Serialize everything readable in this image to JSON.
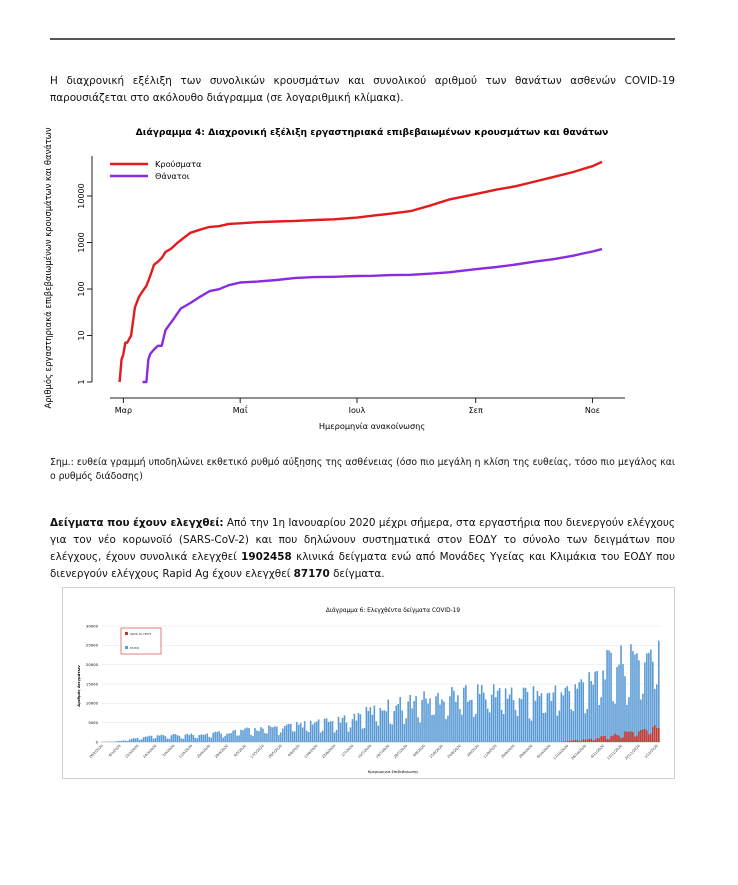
{
  "page": {
    "intro_text": "Η διαχρονική εξέλιξη των συνολικών κρουσμάτων και συνολικού αριθμού των θανάτων ασθενών COVID-19 παρουσιάζεται στο ακόλουθο διάγραμμα (σε λογαριθμική κλίμακα).",
    "note_text": "Σημ.: ευθεία γραμμή υποδηλώνει εκθετικό ρυθμό αύξησης της ασθένειας (όσο πιο μεγάλη η κλίση της ευθείας, τόσο πιο μεγάλος και ο ρυθμός διάδοσης)",
    "samples_heading": "Δείγματα που έχουν ελεγχθεί:",
    "samples_text_1": " Από την 1η Ιανουαρίου 2020 μέχρι σήμερα, στα εργαστήρια που διενεργούν ελέγχους για τον νέο κορωνοϊό (SARS-CoV-2) και που δηλώνουν συστηματικά στον ΕΟΔΥ το σύνολο των δειγμάτων που ελέγχους, έχουν συνολικά ελεγχθεί ",
    "samples_pcr_total": "1902458",
    "samples_text_2": " κλινικά δείγματα ενώ από Μονάδες Υγείας και Κλιμάκια του ΕΟΔΥ που διενεργούν ελέγχους Rapid Ag έχουν ελεγχθεί ",
    "samples_rapid_total": "87170",
    "samples_text_3": " δείγματα."
  },
  "chart_data": [
    {
      "type": "line",
      "title": "Διάγραμμα 4: Διαχρονική εξέλιξη εργαστηριακά επιβεβαιωμένων κρουσμάτων και θανάτων",
      "xlabel": "Ημερομηνία ανακοίνωσης",
      "ylabel": "Αριθμός εργαστηριακά επιβεβαιωμένων κρουσμάτων και θανάτων",
      "y_scale": "log",
      "ylim": [
        1,
        100000
      ],
      "yticks": [
        "1",
        "10",
        "100",
        "1000",
        "10000"
      ],
      "xticks": [
        {
          "label": "Μαρ",
          "day": 0
        },
        {
          "label": "Μαΐ",
          "day": 61
        },
        {
          "label": "Ιουλ",
          "day": 122
        },
        {
          "label": "Σεπ",
          "day": 184
        },
        {
          "label": "Νοε",
          "day": 245
        }
      ],
      "xlim": [
        -7,
        262
      ],
      "legend": "top-left",
      "grid": false,
      "series": [
        {
          "name": "Κρούσματα",
          "color": "#e41a1c",
          "x": [
            -2,
            -1,
            0,
            1,
            2,
            4,
            6,
            8,
            10,
            12,
            14,
            16,
            18,
            20,
            22,
            25,
            28,
            31,
            35,
            40,
            45,
            50,
            55,
            61,
            70,
            80,
            90,
            100,
            110,
            122,
            130,
            140,
            150,
            160,
            170,
            184,
            195,
            205,
            215,
            225,
            235,
            240,
            245,
            250
          ],
          "y": [
            1,
            3,
            4,
            7,
            7,
            10,
            40,
            66,
            89,
            117,
            190,
            331,
            387,
            464,
            624,
            743,
            966,
            1212,
            1613,
            1883,
            2170,
            2245,
            2506,
            2591,
            2726,
            2834,
            2917,
            3046,
            3148,
            3432,
            3772,
            4193,
            4737,
            6177,
            8381,
            10998,
            13730,
            16286,
            20541,
            25902,
            32752,
            38052,
            43770,
            54000
          ]
        },
        {
          "name": "Θάνατοι",
          "color": "#8a2be2",
          "x": [
            10,
            12,
            13,
            14,
            16,
            18,
            20,
            22,
            24,
            26,
            30,
            35,
            40,
            45,
            50,
            55,
            61,
            70,
            80,
            90,
            100,
            110,
            122,
            130,
            140,
            150,
            160,
            170,
            184,
            195,
            205,
            215,
            225,
            235,
            240,
            245,
            250
          ],
          "y": [
            1,
            1,
            3,
            4,
            5,
            6,
            6,
            13,
            17,
            22,
            38,
            50,
            68,
            90,
            99,
            121,
            138,
            144,
            156,
            173,
            180,
            183,
            190,
            192,
            199,
            202,
            213,
            229,
            266,
            297,
            336,
            388,
            440,
            520,
            581,
            640,
            720
          ]
        }
      ]
    },
    {
      "type": "bar",
      "title": "Διάγραμμα 6: Ελεγχθέντα δείγματα COVID-19",
      "xlabel": "Ημερομηνία Επιβεβαίωσης",
      "ylabel": "Αριθμός Δειγμάτων",
      "ylim": [
        0,
        30000
      ],
      "yticks": [
        "0",
        "5000",
        "10000",
        "15000",
        "20000",
        "25000",
        "30000"
      ],
      "xtick_labels": [
        "26/2/2020",
        "6/3/2020",
        "15/3/2020",
        "24/3/2020",
        "2/4/2020",
        "11/4/2020",
        "20/4/2020",
        "29/4/2020",
        "8/5/2020",
        "17/5/2020",
        "26/5/2020",
        "4/6/2020",
        "13/6/2020",
        "22/6/2020",
        "1/7/2020",
        "10/7/2020",
        "19/7/2020",
        "28/7/2020",
        "6/8/2020",
        "15/8/2020",
        "24/8/2020",
        "2/9/2020",
        "11/9/2020",
        "20/9/2020",
        "29/9/2020",
        "8/10/2020",
        "17/10/2020",
        "26/10/2020",
        "4/11/2020",
        "13/11/2020",
        "22/11/2020",
        "1/12/2020"
      ],
      "legend": "top-left",
      "series": [
        {
          "name": "RAPID AG TESTS",
          "color": "#c0392b",
          "profile_days": [
            0,
            230,
            235,
            245,
            255,
            260,
            265,
            270,
            275,
            280
          ],
          "profile_values": [
            0,
            0,
            300,
            800,
            1500,
            2000,
            2500,
            3000,
            3500,
            4000
          ]
        },
        {
          "name": "RT-PCR",
          "color": "#5b9bd5",
          "profile_days": [
            0,
            8,
            15,
            25,
            40,
            60,
            80,
            100,
            120,
            130,
            140,
            150,
            160,
            170,
            180,
            190,
            200,
            210,
            220,
            230,
            240,
            245,
            250,
            255,
            260,
            265,
            270,
            275,
            280
          ],
          "profile_values": [
            0,
            200,
            800,
            1500,
            1800,
            2500,
            3500,
            4500,
            5500,
            7000,
            9000,
            10000,
            11000,
            12000,
            13000,
            13000,
            13500,
            12500,
            12500,
            13000,
            14500,
            17000,
            19500,
            20000,
            21000,
            21000,
            22000,
            23000,
            25000
          ]
        }
      ]
    }
  ]
}
